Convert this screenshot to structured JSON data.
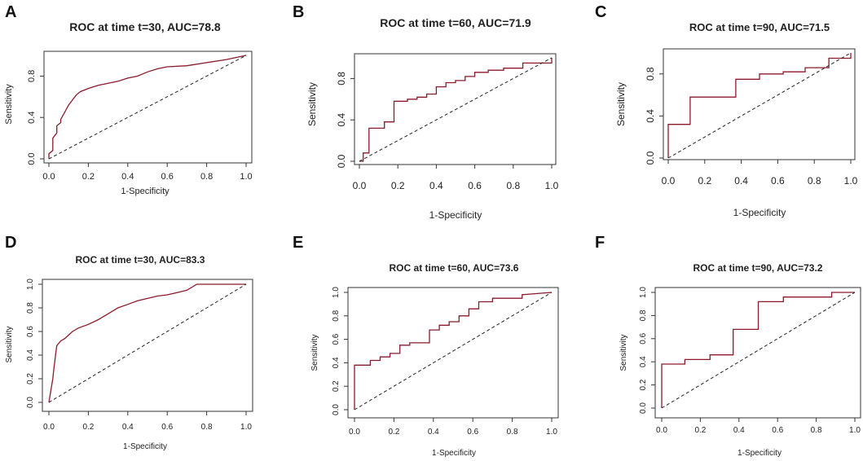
{
  "figure": {
    "colors": {
      "curve": "#8b1a2b",
      "diagonal": "#222222",
      "frame": "#333333"
    }
  },
  "chart_data": [
    {
      "panel": "A",
      "type": "line",
      "title": "ROC at time t=30, AUC=78.8",
      "xlabel": "1-Specificity",
      "ylabel": "Sensitivity",
      "xlim": [
        0,
        1
      ],
      "ylim": [
        0,
        1
      ],
      "xticks": [
        "0.0",
        "0.2",
        "0.4",
        "0.6",
        "0.8",
        "1.0"
      ],
      "yticks": [
        "0.0",
        "0.4",
        "0.8"
      ],
      "series": [
        {
          "name": "ROC",
          "x": [
            0,
            0,
            0.02,
            0.02,
            0.04,
            0.04,
            0.06,
            0.06,
            0.08,
            0.1,
            0.12,
            0.14,
            0.16,
            0.2,
            0.25,
            0.3,
            0.35,
            0.4,
            0.45,
            0.5,
            0.55,
            0.6,
            0.7,
            0.8,
            0.9,
            1.0
          ],
          "y": [
            0,
            0.05,
            0.08,
            0.2,
            0.25,
            0.32,
            0.35,
            0.38,
            0.45,
            0.52,
            0.57,
            0.62,
            0.65,
            0.68,
            0.71,
            0.73,
            0.75,
            0.78,
            0.8,
            0.84,
            0.87,
            0.89,
            0.9,
            0.93,
            0.96,
            1.0
          ]
        },
        {
          "name": "Reference",
          "x": [
            0,
            1
          ],
          "y": [
            0,
            1
          ]
        }
      ]
    },
    {
      "panel": "B",
      "type": "line",
      "title": "ROC at time t=60, AUC=71.9",
      "xlabel": "1-Specificity",
      "ylabel": "Sensitivity",
      "xlim": [
        0,
        1
      ],
      "ylim": [
        0,
        1
      ],
      "xticks": [
        "0.0",
        "0.2",
        "0.4",
        "0.6",
        "0.8",
        "1.0"
      ],
      "yticks": [
        "0.0",
        "0.4",
        "0.8"
      ],
      "series": [
        {
          "name": "ROC",
          "x": [
            0,
            0.02,
            0.02,
            0.05,
            0.05,
            0.13,
            0.13,
            0.18,
            0.18,
            0.25,
            0.25,
            0.3,
            0.3,
            0.35,
            0.35,
            0.4,
            0.4,
            0.45,
            0.45,
            0.5,
            0.5,
            0.55,
            0.55,
            0.6,
            0.6,
            0.67,
            0.67,
            0.75,
            0.75,
            0.85,
            0.85,
            1.0,
            1.0
          ],
          "y": [
            0,
            0,
            0.08,
            0.08,
            0.32,
            0.32,
            0.38,
            0.38,
            0.58,
            0.58,
            0.6,
            0.6,
            0.62,
            0.62,
            0.65,
            0.65,
            0.72,
            0.72,
            0.76,
            0.76,
            0.78,
            0.78,
            0.82,
            0.82,
            0.86,
            0.86,
            0.88,
            0.88,
            0.9,
            0.9,
            0.95,
            0.95,
            1.0
          ]
        },
        {
          "name": "Reference",
          "x": [
            0,
            1
          ],
          "y": [
            0,
            1
          ]
        }
      ]
    },
    {
      "panel": "C",
      "type": "line",
      "title": "ROC at time t=90, AUC=71.5",
      "xlabel": "1-Specificity",
      "ylabel": "Sensitivity",
      "xlim": [
        0,
        1
      ],
      "ylim": [
        0,
        1
      ],
      "xticks": [
        "0.0",
        "0.2",
        "0.4",
        "0.6",
        "0.8",
        "1.0"
      ],
      "yticks": [
        "0.0",
        "0.4",
        "0.8"
      ],
      "series": [
        {
          "name": "ROC",
          "x": [
            0,
            0,
            0.12,
            0.12,
            0.37,
            0.37,
            0.5,
            0.5,
            0.63,
            0.63,
            0.75,
            0.75,
            0.88,
            0.88,
            1.0,
            1.0
          ],
          "y": [
            0,
            0.32,
            0.32,
            0.58,
            0.58,
            0.75,
            0.75,
            0.8,
            0.8,
            0.82,
            0.82,
            0.86,
            0.86,
            0.95,
            0.95,
            1.0
          ]
        },
        {
          "name": "Reference",
          "x": [
            0,
            1
          ],
          "y": [
            0,
            1
          ]
        }
      ]
    },
    {
      "panel": "D",
      "type": "line",
      "title": "ROC at time t=30, AUC=83.3",
      "xlabel": "1-Specificity",
      "ylabel": "Sensitivity",
      "xlim": [
        0,
        1
      ],
      "ylim": [
        0,
        1
      ],
      "xticks": [
        "0.0",
        "0.2",
        "0.4",
        "0.6",
        "0.8",
        "1.0"
      ],
      "yticks": [
        "0.0",
        "0.2",
        "0.4",
        "0.6",
        "0.8",
        "1.0"
      ],
      "series": [
        {
          "name": "ROC",
          "x": [
            0,
            0.005,
            0.01,
            0.015,
            0.02,
            0.025,
            0.03,
            0.035,
            0.04,
            0.05,
            0.06,
            0.08,
            0.1,
            0.12,
            0.15,
            0.2,
            0.25,
            0.3,
            0.35,
            0.4,
            0.45,
            0.5,
            0.55,
            0.6,
            0.65,
            0.7,
            0.75,
            1.0
          ],
          "y": [
            0,
            0.05,
            0.1,
            0.15,
            0.2,
            0.28,
            0.35,
            0.42,
            0.48,
            0.5,
            0.52,
            0.54,
            0.57,
            0.6,
            0.63,
            0.66,
            0.7,
            0.75,
            0.8,
            0.83,
            0.86,
            0.88,
            0.9,
            0.91,
            0.93,
            0.95,
            1.0,
            1.0
          ]
        },
        {
          "name": "Reference",
          "x": [
            0,
            1
          ],
          "y": [
            0,
            1
          ]
        }
      ]
    },
    {
      "panel": "E",
      "type": "line",
      "title": "ROC at time t=60, AUC=73.6",
      "xlabel": "1-Specificity",
      "ylabel": "Sensitivity",
      "xlim": [
        0,
        1
      ],
      "ylim": [
        0,
        1
      ],
      "xticks": [
        "0.0",
        "0.2",
        "0.4",
        "0.6",
        "0.8",
        "1.0"
      ],
      "yticks": [
        "0.0",
        "0.2",
        "0.4",
        "0.6",
        "0.8",
        "1.0"
      ],
      "series": [
        {
          "name": "ROC",
          "x": [
            0,
            0,
            0.08,
            0.08,
            0.13,
            0.13,
            0.18,
            0.18,
            0.23,
            0.23,
            0.28,
            0.28,
            0.38,
            0.38,
            0.43,
            0.43,
            0.48,
            0.48,
            0.53,
            0.53,
            0.58,
            0.58,
            0.63,
            0.63,
            0.7,
            0.7,
            0.85,
            0.85,
            1.0
          ],
          "y": [
            0,
            0.38,
            0.38,
            0.42,
            0.42,
            0.45,
            0.45,
            0.48,
            0.48,
            0.55,
            0.55,
            0.57,
            0.57,
            0.68,
            0.68,
            0.72,
            0.72,
            0.75,
            0.75,
            0.8,
            0.8,
            0.86,
            0.86,
            0.92,
            0.92,
            0.95,
            0.95,
            0.98,
            1.0
          ]
        },
        {
          "name": "Reference",
          "x": [
            0,
            1
          ],
          "y": [
            0,
            1
          ]
        }
      ]
    },
    {
      "panel": "F",
      "type": "line",
      "title": "ROC at time t=90, AUC=73.2",
      "xlabel": "1-Specificity",
      "ylabel": "Sensitivity",
      "xlim": [
        0,
        1
      ],
      "ylim": [
        0,
        1
      ],
      "xticks": [
        "0.0",
        "0.2",
        "0.4",
        "0.6",
        "0.8",
        "1.0"
      ],
      "yticks": [
        "0.0",
        "0.2",
        "0.4",
        "0.6",
        "0.8",
        "1.0"
      ],
      "series": [
        {
          "name": "ROC",
          "x": [
            0,
            0,
            0.12,
            0.12,
            0.25,
            0.25,
            0.37,
            0.37,
            0.5,
            0.5,
            0.63,
            0.63,
            0.88,
            0.88,
            1.0
          ],
          "y": [
            0,
            0.38,
            0.38,
            0.42,
            0.42,
            0.46,
            0.46,
            0.68,
            0.68,
            0.92,
            0.92,
            0.96,
            0.96,
            1.0,
            1.0
          ]
        },
        {
          "name": "Reference",
          "x": [
            0,
            1
          ],
          "y": [
            0,
            1
          ]
        }
      ]
    }
  ]
}
